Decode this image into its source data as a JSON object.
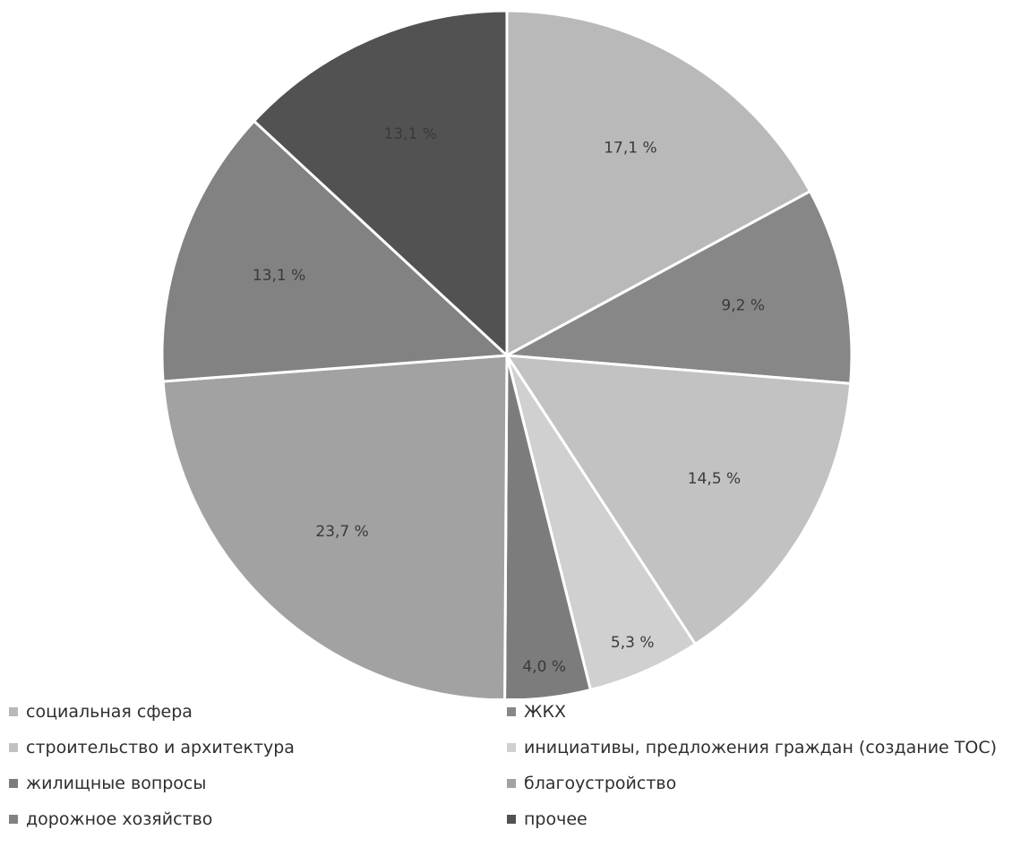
{
  "chart_data": {
    "type": "pie",
    "categories": [
      "социальная сфера",
      "ЖКХ",
      "строительство и архитектура",
      "инициативы, предложения граждан (создание ТОС)",
      "жилищные вопросы",
      "благоустройство",
      "дорожное хозяйство",
      "прочее"
    ],
    "values": [
      17.1,
      9.2,
      14.5,
      5.3,
      4.0,
      23.7,
      13.1,
      13.1
    ],
    "value_labels": [
      "17,1 %",
      "9,2 %",
      "14,5 %",
      "5,3 %",
      "4,0 %",
      "23,7 %",
      "13,1 %",
      "13,1 %"
    ],
    "colors": [
      "#b9b9b9",
      "#878787",
      "#c2c2c2",
      "#d0d0d0",
      "#7c7c7c",
      "#a2a2a2",
      "#828282",
      "#525252"
    ],
    "start_angle": "12 o'clock",
    "direction": "clockwise",
    "legend_position": "bottom",
    "legend_columns": 2
  }
}
